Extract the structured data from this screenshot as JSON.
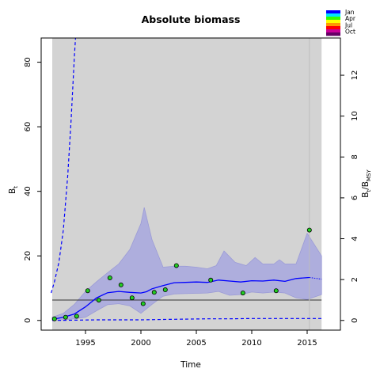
{
  "chart_data": {
    "type": "line",
    "title": "Absolute biomass",
    "xlabel": "Time",
    "ylabel_left": "B",
    "ylabel_left_sub": "t",
    "ylabel_right": "B",
    "ylabel_right_sub": "t",
    "ylabel_right_mid": "/B",
    "ylabel_right_sub2": "MSY",
    "xlim": [
      1991.0,
      2018.0
    ],
    "ylim": [
      -3.0,
      87.5
    ],
    "ylim_right_ticks": [
      0,
      2,
      4,
      6,
      8,
      10,
      12
    ],
    "right_axis_scale": 6.33,
    "x_ticks": [
      1995,
      2000,
      2005,
      2010,
      2015
    ],
    "y_ticks": [
      0,
      20,
      40,
      60,
      80
    ],
    "gray_band": [
      1992.0,
      2016.3
    ],
    "vertical_line_x": 2015.2,
    "bmsy_line_y": 6.33,
    "legend": {
      "position": "top-right",
      "labels": [
        "Jan",
        "Apr",
        "Jul",
        "Oct"
      ],
      "colors": [
        "#0000ff",
        "#00e5ff",
        "#33ff00",
        "#ffff00",
        "#ff9900",
        "#ff0000",
        "#cc0099",
        "#660066"
      ]
    },
    "estimate_line": {
      "name": "",
      "color": "#0000ff",
      "x": [
        1992.0,
        1993.0,
        1994.0,
        1995.0,
        1996.0,
        1997.0,
        1998.0,
        1999.0,
        2000.0,
        2000.5,
        2001.0,
        2002.0,
        2003.0,
        2004.0,
        2005.0,
        2006.0,
        2007.0,
        2008.0,
        2009.0,
        2010.0,
        2011.0,
        2012.0,
        2013.0,
        2014.0,
        2015.2
      ],
      "y": [
        0.3,
        1.0,
        2.0,
        4.2,
        7.0,
        8.6,
        9.0,
        8.7,
        8.5,
        8.9,
        9.8,
        10.8,
        11.7,
        11.8,
        11.9,
        11.8,
        12.5,
        12.2,
        11.9,
        12.3,
        12.2,
        12.5,
        12.1,
        13.0,
        13.3
      ]
    },
    "estimate_tail": {
      "x": [
        2015.2,
        2016.3
      ],
      "y": [
        13.3,
        12.8
      ]
    },
    "ci_upper": {
      "x": [
        1992.0,
        1993.0,
        1994.0,
        1995.0,
        1996.0,
        1997.0,
        1998.0,
        1999.0,
        2000.0,
        2000.3,
        2001.0,
        2002.0,
        2003.0,
        2004.0,
        2005.0,
        2006.0,
        2006.8,
        2007.5,
        2008.5,
        2009.5,
        2010.3,
        2011.0,
        2012.0,
        2012.5,
        2013.0,
        2014.0,
        2015.0,
        2016.3
      ],
      "y": [
        1.0,
        2.2,
        5.0,
        9.0,
        12.0,
        14.8,
        17.5,
        22.0,
        30.0,
        35.0,
        25.0,
        16.5,
        16.8,
        16.8,
        16.5,
        16.0,
        17.0,
        21.5,
        18.0,
        17.0,
        19.5,
        17.5,
        17.5,
        18.8,
        17.5,
        17.5,
        27.0,
        20.0
      ]
    },
    "ci_lower": {
      "x": [
        1992.0,
        1993.0,
        1994.0,
        1995.0,
        1996.0,
        1997.0,
        1998.0,
        1999.0,
        2000.0,
        2001.0,
        2002.0,
        2003.0,
        2004.0,
        2005.0,
        2006.0,
        2007.0,
        2008.0,
        2009.0,
        2010.0,
        2011.0,
        2012.0,
        2013.0,
        2014.0,
        2015.0,
        2016.3
      ],
      "y": [
        0.1,
        0.2,
        0.5,
        1.0,
        3.0,
        4.9,
        5.2,
        4.5,
        2.2,
        5.0,
        7.5,
        8.2,
        8.3,
        8.4,
        8.5,
        9.0,
        7.8,
        8.0,
        8.8,
        8.5,
        8.8,
        8.5,
        7.0,
        6.5,
        8.0
      ]
    },
    "upper_dashed": {
      "x": [
        1991.9,
        1992.2,
        1992.6,
        1993.0,
        1993.4,
        1993.7,
        1994.0,
        1994.1
      ],
      "y": [
        8.5,
        12.0,
        18.0,
        28.0,
        45.0,
        62.0,
        82.0,
        87.5
      ]
    },
    "lower_dashed": {
      "x": [
        1992.0,
        1994.0,
        1996.0,
        1998.0,
        2000.0,
        2002.0,
        2004.0,
        2006.0,
        2008.0,
        2010.0,
        2012.0,
        2014.0,
        2016.3
      ],
      "y": [
        0.0,
        0.1,
        0.2,
        0.2,
        0.2,
        0.3,
        0.4,
        0.5,
        0.5,
        0.6,
        0.6,
        0.6,
        0.6
      ]
    },
    "observations": {
      "color": "#22cc22",
      "x": [
        1992.2,
        1993.2,
        1994.2,
        1995.2,
        1996.2,
        1997.2,
        1998.2,
        1999.2,
        2000.2,
        2001.2,
        2002.2,
        2003.2,
        2006.3,
        2009.2,
        2012.2,
        2015.2
      ],
      "y": [
        0.5,
        1.0,
        1.3,
        9.2,
        6.3,
        13.2,
        11.0,
        7.0,
        5.2,
        8.7,
        9.5,
        17.0,
        12.5,
        8.5,
        9.2,
        28.0
      ]
    }
  }
}
